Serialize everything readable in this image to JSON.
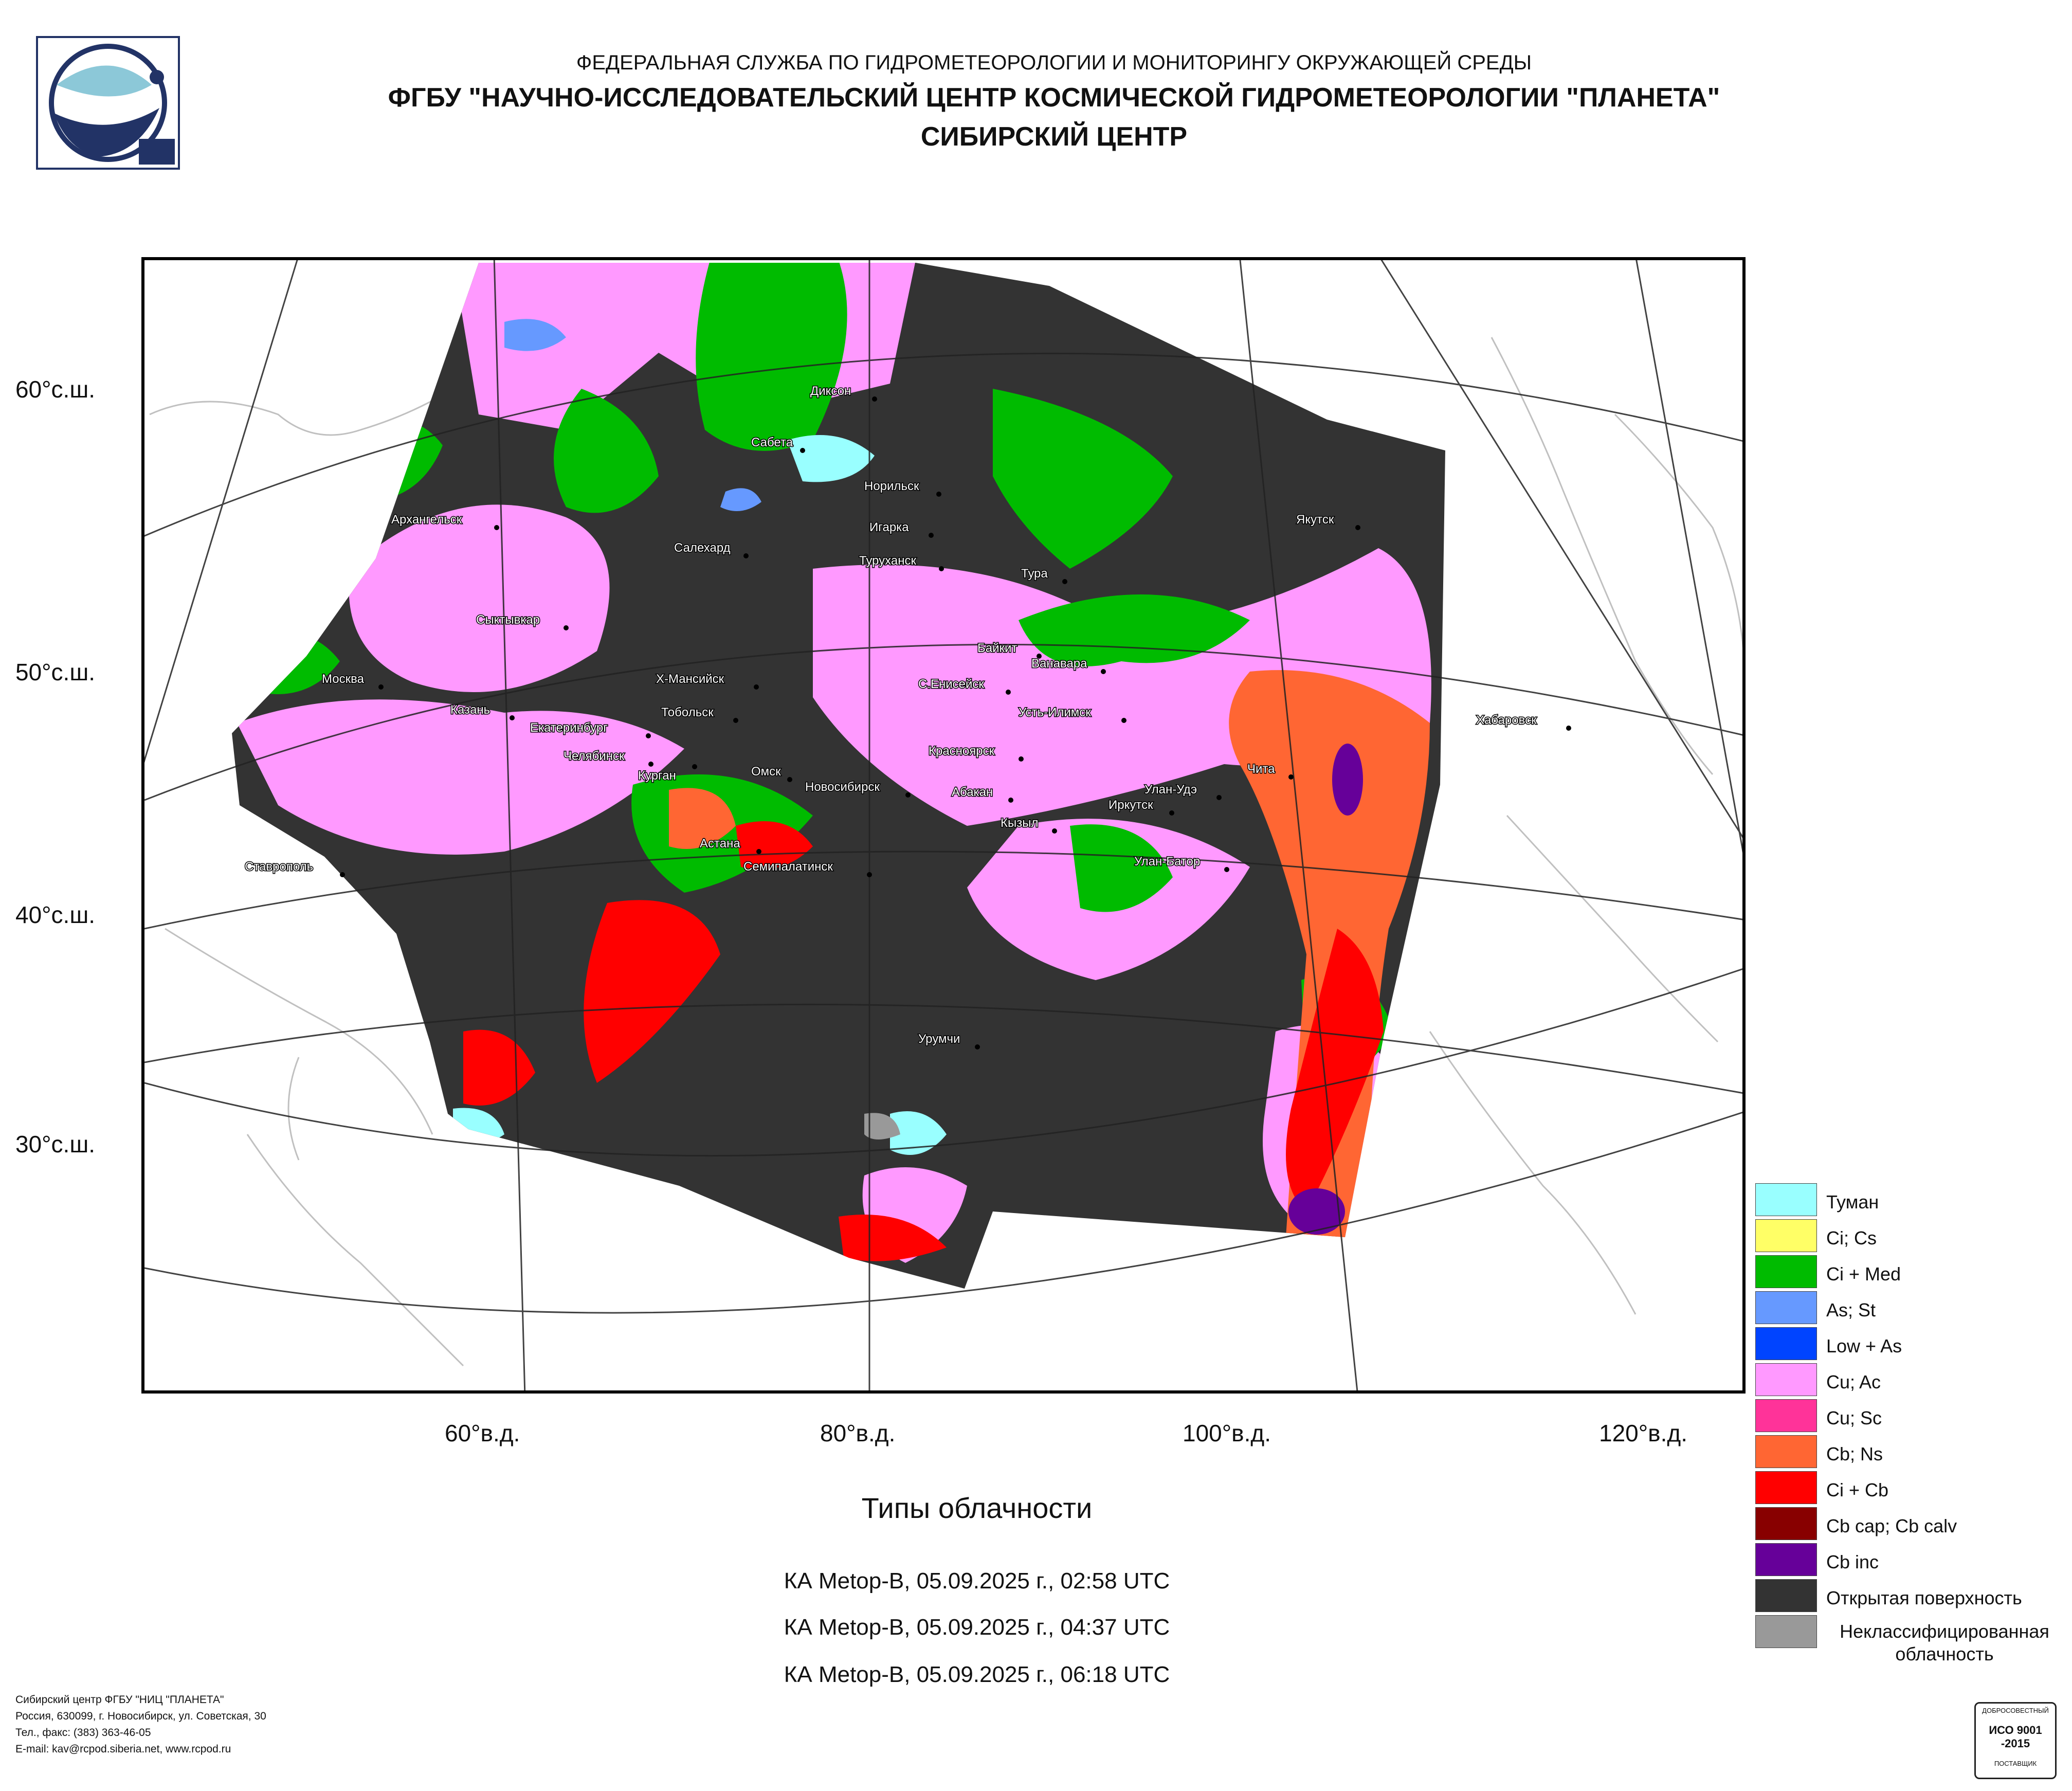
{
  "header": {
    "line1": "ФЕДЕРАЛЬНАЯ СЛУЖБА ПО ГИДРОМЕТЕОРОЛОГИИ И МОНИТОРИНГУ ОКРУЖАЮЩЕЙ СРЕДЫ",
    "line2": "ФГБУ \"НАУЧНО-ИССЛЕДОВАТЕЛЬСКИЙ ЦЕНТР КОСМИЧЕСКОЙ ГИДРОМЕТЕОРОЛОГИИ \"ПЛАНЕТА\"",
    "line3": "СИБИРСКИЙ ЦЕНТР"
  },
  "latitude_labels": [
    "60°с.ш.",
    "50°с.ш.",
    "40°с.ш.",
    "30°с.ш."
  ],
  "longitude_labels": [
    "60°в.д.",
    "80°в.д.",
    "100°в.д.",
    "120°в.д."
  ],
  "cities": [
    "Диксон",
    "Сабета",
    "Норильск",
    "Игарка",
    "Туруханск",
    "Архангельск",
    "Салехард",
    "Якутск",
    "Тура",
    "Сыктывкар",
    "Байкит",
    "Ванавара",
    "Москва",
    "Х-Мансийск",
    "С.Енисейск",
    "Казань",
    "Тобольск",
    "Усть-Илимск",
    "Хабаровск",
    "Екатеринбург",
    "Челябинск",
    "Курган",
    "Красноярск",
    "Омск",
    "Чита",
    "Новосибирск",
    "Абакан",
    "Улан-Удэ",
    "Иркутск",
    "Кызыл",
    "Астана",
    "Ставрополь",
    "Семипалатинск",
    "Улан-Батор",
    "Урумчи"
  ],
  "legend": [
    {
      "label": "Туман",
      "color": "#99ffff"
    },
    {
      "label": "Ci; Cs",
      "color": "#ffff66"
    },
    {
      "label": "Ci + Med",
      "color": "#00bb00"
    },
    {
      "label": "As; St",
      "color": "#6699ff"
    },
    {
      "label": "Low + As",
      "color": "#0044ff"
    },
    {
      "label": "Cu; Ac",
      "color": "#ff99ff"
    },
    {
      "label": "Cu; Sc",
      "color": "#ff3399"
    },
    {
      "label": "Cb; Ns",
      "color": "#ff6633"
    },
    {
      "label": "Ci + Cb",
      "color": "#ff0000"
    },
    {
      "label": "Cb cap; Cb calv",
      "color": "#880000"
    },
    {
      "label": "Cb inc",
      "color": "#660099"
    },
    {
      "label": "Открытая поверхность",
      "color": "#333333"
    },
    {
      "label": "Неклассифицированная облачность",
      "color": "#999999"
    }
  ],
  "caption": {
    "title": "Типы облачности",
    "passes": [
      "КА Metop-B, 05.09.2025 г., 02:58 UTC",
      "КА Metop-B, 05.09.2025 г., 04:37 UTC",
      "КА Metop-B, 05.09.2025 г., 06:18 UTC"
    ]
  },
  "footer": {
    "line1": "Сибирский центр ФГБУ \"НИЦ \"ПЛАНЕТА\"",
    "line2": "Россия, 630099, г. Новосибирск, ул. Советская, 30",
    "line3": "Тел., факс: (383) 363-46-05",
    "line4": "E-mail: kav@rcpod.siberia.net, www.rcpod.ru"
  },
  "iso_badge": {
    "top": "ДОБРОСОВЕСТНЫЙ",
    "std": "ИСО 9001 -2015",
    "bottom": "ПОСТАВЩИК"
  }
}
